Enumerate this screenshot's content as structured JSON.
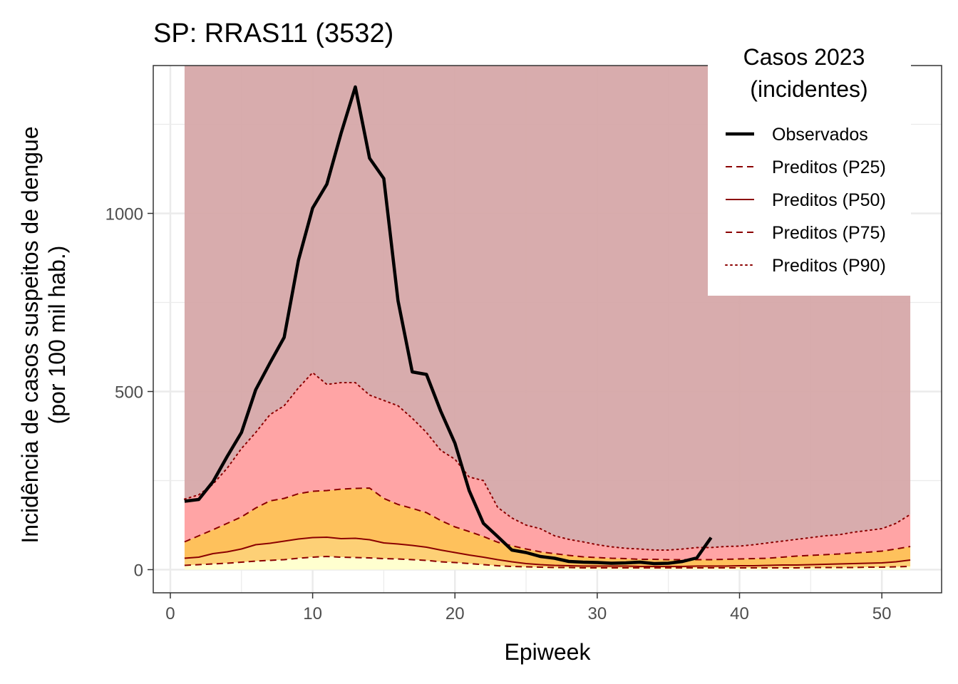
{
  "chart_data": {
    "type": "area",
    "title": "SP: RRAS11 (3532)",
    "xlabel": "Epiweek",
    "ylabel_lines": [
      "Incidência de casos suspeitos de dengue",
      "(por 100 mil hab.)"
    ],
    "xlim": [
      -1.2,
      54.2
    ],
    "ylim": [
      -65,
      1415
    ],
    "xticks": [
      0,
      10,
      20,
      30,
      40,
      50
    ],
    "yticks": [
      0,
      500,
      1000
    ],
    "grid": true,
    "legend": {
      "position": "top-right",
      "title_lines": [
        "Casos 2023",
        "(incidentes)"
      ],
      "entries": [
        {
          "label": "Observados",
          "style": "solid-thick"
        },
        {
          "label": "Preditos (P25)",
          "style": "dashed"
        },
        {
          "label": "Preditos (P50)",
          "style": "solid"
        },
        {
          "label": "Preditos (P75)",
          "style": "dashed"
        },
        {
          "label": "Preditos (P90)",
          "style": "dotted"
        }
      ]
    },
    "x": [
      1,
      2,
      3,
      4,
      5,
      6,
      7,
      8,
      9,
      10,
      11,
      12,
      13,
      14,
      15,
      16,
      17,
      18,
      19,
      20,
      21,
      22,
      23,
      24,
      25,
      26,
      27,
      28,
      29,
      30,
      31,
      32,
      33,
      34,
      35,
      36,
      37,
      38,
      39,
      40,
      41,
      42,
      43,
      44,
      45,
      46,
      47,
      48,
      49,
      50,
      51,
      52
    ],
    "band_top": 1415,
    "series": [
      {
        "name": "Preditos (P25)",
        "values": [
          12,
          14,
          16,
          18,
          21,
          24,
          26,
          28,
          32,
          35,
          37,
          35,
          34,
          33,
          31,
          30,
          28,
          26,
          22,
          20,
          17,
          14,
          11,
          9,
          8,
          7,
          6,
          6,
          5,
          5,
          5,
          5,
          5,
          5,
          5,
          5,
          5,
          5,
          5,
          5,
          5,
          5,
          5,
          5,
          6,
          6,
          6,
          6,
          7,
          7,
          8,
          9
        ]
      },
      {
        "name": "Preditos (P50)",
        "values": [
          32,
          35,
          45,
          50,
          58,
          70,
          74,
          80,
          86,
          90,
          91,
          87,
          88,
          84,
          75,
          72,
          68,
          63,
          55,
          48,
          41,
          35,
          28,
          22,
          17,
          14,
          12,
          11,
          10,
          10,
          10,
          10,
          9,
          9,
          9,
          9,
          10,
          10,
          10,
          11,
          11,
          12,
          13,
          13,
          14,
          15,
          16,
          17,
          18,
          19,
          22,
          27
        ]
      },
      {
        "name": "Preditos (P75)",
        "values": [
          78,
          95,
          112,
          130,
          148,
          173,
          193,
          200,
          213,
          220,
          222,
          226,
          228,
          229,
          200,
          183,
          172,
          160,
          138,
          120,
          107,
          93,
          77,
          67,
          58,
          50,
          45,
          40,
          36,
          34,
          32,
          31,
          29,
          29,
          28,
          28,
          28,
          28,
          29,
          30,
          31,
          32,
          35,
          38,
          40,
          42,
          44,
          47,
          49,
          52,
          58,
          65
        ]
      },
      {
        "name": "Preditos (P90)",
        "values": [
          198,
          210,
          240,
          285,
          340,
          385,
          435,
          460,
          510,
          553,
          520,
          525,
          525,
          490,
          475,
          460,
          425,
          385,
          335,
          310,
          260,
          250,
          175,
          145,
          125,
          115,
          95,
          85,
          78,
          70,
          64,
          60,
          58,
          55,
          55,
          58,
          62,
          62,
          65,
          66,
          70,
          75,
          80,
          85,
          90,
          95,
          98,
          105,
          110,
          115,
          130,
          155
        ]
      },
      {
        "name": "Observados",
        "x": [
          1,
          2,
          3,
          4,
          5,
          6,
          7,
          8,
          9,
          10,
          11,
          12,
          13,
          14,
          15,
          16,
          17,
          18,
          19,
          20,
          21,
          22,
          23,
          24,
          25,
          26,
          27,
          28,
          29,
          30,
          31,
          32,
          33,
          34,
          35,
          36,
          37,
          38
        ],
        "values": [
          192,
          197,
          247,
          318,
          385,
          505,
          580,
          652,
          868,
          1015,
          1082,
          1225,
          1355,
          1155,
          1098,
          755,
          555,
          548,
          445,
          355,
          222,
          130,
          93,
          55,
          48,
          37,
          32,
          23,
          21,
          20,
          18,
          19,
          21,
          17,
          18,
          23,
          33,
          90
        ]
      }
    ],
    "colors": {
      "band_upper": "#d5a6a7",
      "band_p75_p90": "#ffa4a5",
      "band_p50_p75": "#fec15c",
      "band_p25_p50": "#fdd076",
      "band_low": "#ffffcf",
      "pred_line": "#8b0000",
      "obs_line": "#000000",
      "grid": "#ebebeb"
    }
  }
}
